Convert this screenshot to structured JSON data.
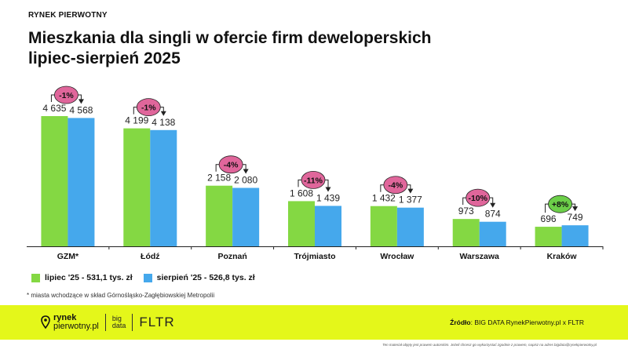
{
  "header": {
    "eyebrow": "RYNEK PIERWOTNY",
    "title_line1": "Mieszkania dla singli w ofercie firm deweloperskich",
    "title_line2": "lipiec-sierpień 2025"
  },
  "colors": {
    "july": "#84d843",
    "august": "#45a8ec",
    "neg_badge": "#e0669b",
    "pos_badge": "#6ccf49",
    "footer": "#e4f71a"
  },
  "chart_data": {
    "type": "bar",
    "title": "Mieszkania dla singli w ofercie firm deweloperskich lipiec-sierpień 2025",
    "categories": [
      "GZM*",
      "Łódź",
      "Poznań",
      "Trójmiasto",
      "Wrocław",
      "Warszawa",
      "Kraków"
    ],
    "series": [
      {
        "name": "lipiec '25 - 531,1 tys. zł",
        "values": [
          4635,
          4199,
          2158,
          1608,
          1432,
          973,
          696
        ],
        "labels": [
          "4 635",
          "4 199",
          "2 158",
          "1 608",
          "1 432",
          "973",
          "696"
        ]
      },
      {
        "name": "sierpień '25 - 526,8 tys. zł",
        "values": [
          4568,
          4138,
          2080,
          1439,
          1377,
          874,
          749
        ],
        "labels": [
          "4 568",
          "4 138",
          "2 080",
          "1 439",
          "1 377",
          "874",
          "749"
        ]
      }
    ],
    "changes": [
      "-1%",
      "-1%",
      "-4%",
      "-11%",
      "-4%",
      "-10%",
      "+8%"
    ],
    "ylim": [
      0,
      5000
    ],
    "xlabel": "",
    "ylabel": "",
    "grid": false,
    "legend": "bottom-left"
  },
  "footnote": "* miasta wchodzące w skład Górnośląsko-Zagłębiowskiej Metropolii",
  "footer": {
    "brand_line1": "rynek",
    "brand_line2": "pierwotny.pl",
    "brand_big1": "big",
    "brand_big2": "data",
    "brand_fltr": "FLTR",
    "source_label": "Źródło",
    "source_text": ": BIG DATA RynekPierwotny.pl x FLTR"
  },
  "disclaimer": "Ten materiał objęty jest prawem autorskim. Jeżeli chcesz go wykorzystać zgodnie z prawem, napisz na adres bigdata@rynekpierwotny.pl"
}
